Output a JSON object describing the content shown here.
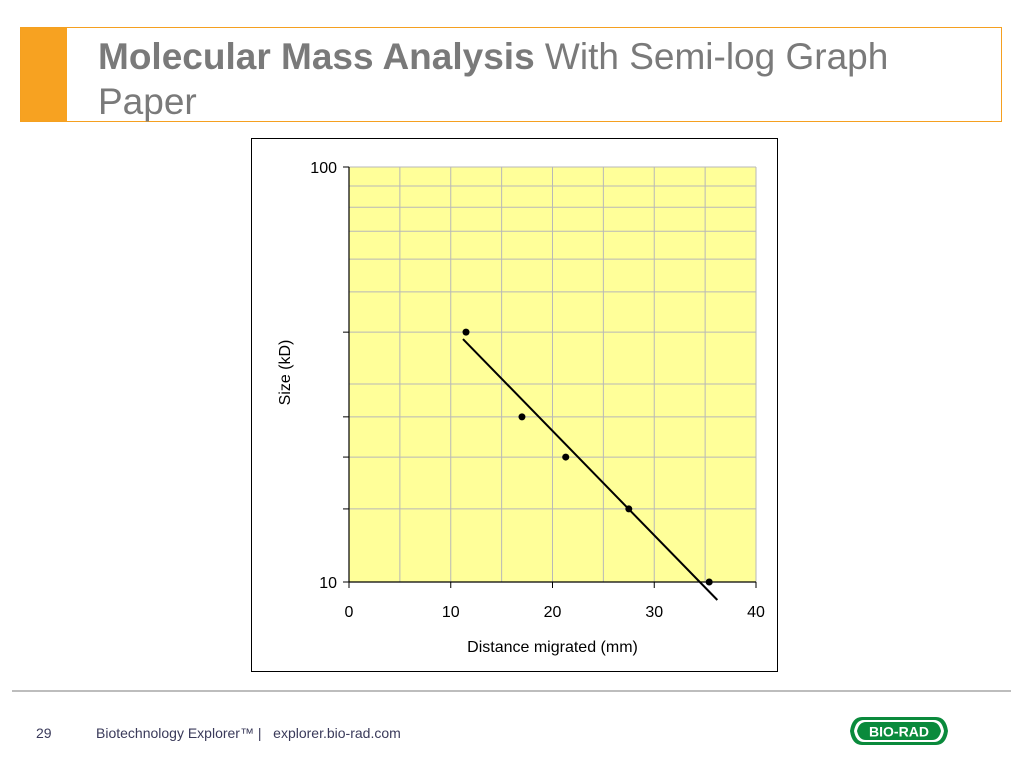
{
  "slide": {
    "title_bold": "Molecular Mass Analysis",
    "title_rest": " With Semi-log Graph Paper",
    "page_number": "29",
    "footer_product": "Biotechnology Explorer™ |",
    "footer_url": "explorer.bio-rad.com",
    "logo_text": "BIO-RAD",
    "accent_color": "#f7a221",
    "logo_color": "#0a8a3c"
  },
  "chart_data": {
    "type": "scatter",
    "xlabel": "Distance migrated (mm)",
    "ylabel": "Size (kD)",
    "xlim": [
      0,
      40
    ],
    "ylim": [
      10,
      100
    ],
    "y_scale": "log",
    "x_ticks": [
      "0",
      "10",
      "20",
      "30",
      "40"
    ],
    "y_tick_labels": [
      "100",
      "10"
    ],
    "y_minor_ticks": [
      15,
      20,
      25,
      40
    ],
    "plot_background": "#ffff99",
    "grid": true,
    "series": [
      {
        "points": [
          {
            "x": 11.5,
            "y": 40
          },
          {
            "x": 17,
            "y": 25
          },
          {
            "x": 21.3,
            "y": 20
          },
          {
            "x": 27.5,
            "y": 15
          },
          {
            "x": 35.4,
            "y": 10
          }
        ]
      }
    ],
    "trendline": {
      "x": [
        11.2,
        36.2
      ],
      "y": [
        38.5,
        9.05
      ]
    }
  }
}
